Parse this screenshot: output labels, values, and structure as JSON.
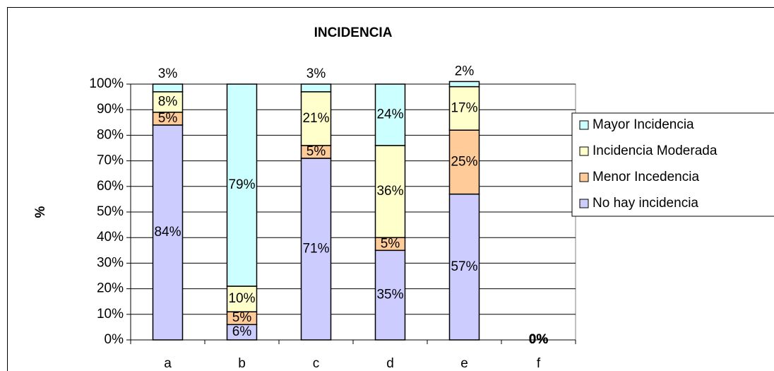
{
  "chart_data": {
    "type": "stacked_bar",
    "title": "INCIDENCIA",
    "y_label": "%",
    "categories": [
      "a",
      "b",
      "c",
      "d",
      "e",
      "f"
    ],
    "series": [
      {
        "name": "No hay incidencia",
        "color": "#ccccff",
        "values": [
          84,
          6,
          71,
          35,
          57,
          0
        ],
        "value_labels": [
          "84%",
          "6%",
          "71%",
          "35%",
          "57%",
          "0%"
        ]
      },
      {
        "name": "Menor Incedencia",
        "color": "#ffcc99",
        "values": [
          5,
          5,
          5,
          5,
          25,
          0
        ],
        "value_labels": [
          "5%",
          "5%",
          "5%",
          "5%",
          "25%",
          "0%"
        ]
      },
      {
        "name": "Incidencia Moderada",
        "color": "#ffffcc",
        "values": [
          8,
          10,
          21,
          36,
          17,
          0
        ],
        "value_labels": [
          "8%",
          "10%",
          "21%",
          "36%",
          "17%",
          "0%"
        ]
      },
      {
        "name": "Mayor Incidencia",
        "color": "#ccffff",
        "values": [
          3,
          79,
          3,
          24,
          2,
          0
        ],
        "value_labels": [
          "3%",
          "79%",
          "3%",
          "24%",
          "2%",
          "0%"
        ]
      }
    ],
    "ylim": [
      0,
      100
    ],
    "yticks": [
      {
        "value": 0,
        "label": "0%"
      },
      {
        "value": 10,
        "label": "10%"
      },
      {
        "value": 20,
        "label": "20%"
      },
      {
        "value": 30,
        "label": "30%"
      },
      {
        "value": 40,
        "label": "40%"
      },
      {
        "value": 50,
        "label": "50%"
      },
      {
        "value": 60,
        "label": "60%"
      },
      {
        "value": 70,
        "label": "70%"
      },
      {
        "value": 80,
        "label": "80%"
      },
      {
        "value": 90,
        "label": "90%"
      },
      {
        "value": 100,
        "label": "100%"
      }
    ],
    "grid": true,
    "legend": "right"
  }
}
